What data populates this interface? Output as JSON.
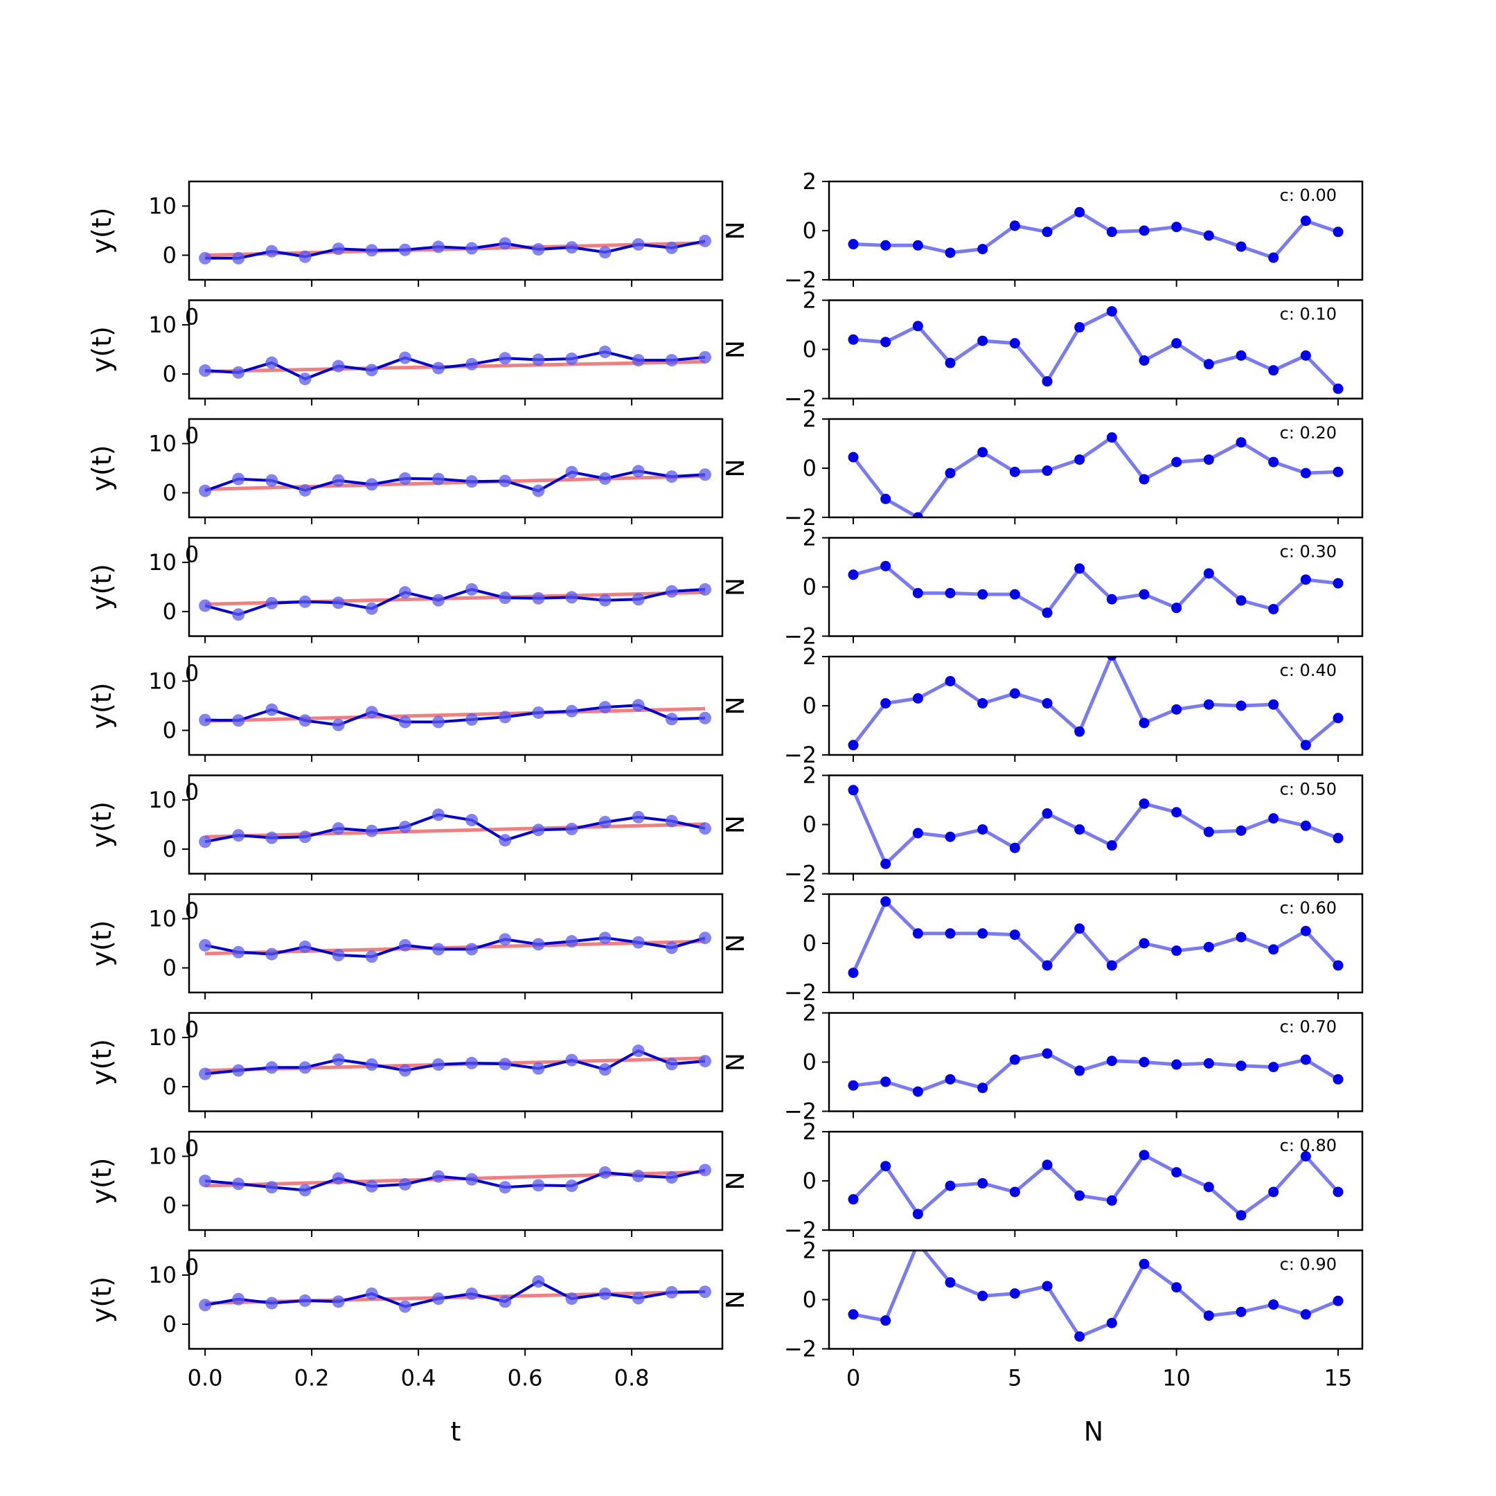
{
  "chart_data": {
    "type": "line",
    "panels": {
      "left": {
        "x": [
          0.0,
          0.0625,
          0.125,
          0.1875,
          0.25,
          0.3125,
          0.375,
          0.4375,
          0.5,
          0.5625,
          0.625,
          0.6875,
          0.75,
          0.8125,
          0.875,
          0.9375
        ],
        "xticks": [
          "0.0",
          "0.2",
          "0.4",
          "0.6",
          "0.8"
        ],
        "xtick_values": [
          0.0,
          0.2,
          0.4,
          0.6,
          0.8
        ],
        "xlim": [
          -0.03,
          0.97
        ],
        "ylim": [
          -5,
          15
        ],
        "yticks": [
          "0",
          "10"
        ],
        "ytick_values": [
          0,
          10
        ],
        "xlabel": "t",
        "ylabel": "y(t)",
        "colors": {
          "data": "#0000cc",
          "trend": "#f08080"
        }
      },
      "right": {
        "x": [
          0,
          1,
          2,
          3,
          4,
          5,
          6,
          7,
          8,
          9,
          10,
          11,
          12,
          13,
          14,
          15
        ],
        "xticks": [
          "0",
          "5",
          "10",
          "15"
        ],
        "xtick_values": [
          0,
          5,
          10,
          15
        ],
        "xlim": [
          -0.75,
          15.75
        ],
        "ylim": [
          -2,
          2
        ],
        "yticks": [
          "−2",
          "0",
          "2"
        ],
        "ytick_values": [
          -2,
          0,
          2
        ],
        "xlabel": "N",
        "right_ylabel": "N",
        "colors": {
          "line": "#7b7bf0",
          "marker": "#0000ee"
        }
      }
    },
    "rows": [
      {
        "label": "c: 0.00",
        "y": [
          -0.6,
          -0.6,
          0.8,
          -0.3,
          1.3,
          1.0,
          1.1,
          1.7,
          1.4,
          2.4,
          1.2,
          1.6,
          0.6,
          2.2,
          1.5,
          2.9
        ],
        "trend": [
          0.0,
          2.5
        ],
        "noise": [
          -0.55,
          -0.6,
          -0.6,
          -0.9,
          -0.75,
          0.2,
          -0.05,
          0.75,
          -0.05,
          0.0,
          0.15,
          -0.2,
          -0.65,
          -1.1,
          0.4,
          -0.05
        ]
      },
      {
        "label": "c: 0.10",
        "y": [
          0.7,
          0.3,
          2.3,
          -1.0,
          1.6,
          0.8,
          3.3,
          1.2,
          2.0,
          3.2,
          2.9,
          3.1,
          4.5,
          2.8,
          2.8,
          3.4
        ],
        "trend": [
          0.5,
          2.5
        ],
        "noise": [
          0.4,
          0.3,
          0.95,
          -0.55,
          0.35,
          0.25,
          -1.3,
          0.9,
          1.55,
          -0.45,
          0.25,
          -0.6,
          -0.25,
          -0.85,
          -0.25,
          -1.6
        ]
      },
      {
        "label": "c: 0.20",
        "y": [
          0.4,
          2.8,
          2.5,
          0.5,
          2.5,
          1.7,
          2.9,
          2.8,
          2.3,
          2.4,
          0.4,
          4.2,
          2.9,
          4.4,
          3.3,
          3.7
        ],
        "trend": [
          0.7,
          3.4
        ],
        "noise": [
          0.45,
          -1.25,
          -2.0,
          -0.2,
          0.65,
          -0.15,
          -0.1,
          0.35,
          1.25,
          -0.45,
          0.25,
          0.35,
          1.05,
          0.25,
          -0.2,
          -0.15
        ]
      },
      {
        "label": "c: 0.30",
        "y": [
          1.2,
          -0.6,
          1.7,
          2.0,
          1.8,
          0.6,
          3.9,
          2.3,
          4.5,
          2.8,
          2.7,
          2.9,
          2.3,
          2.5,
          4.1,
          4.5
        ],
        "trend": [
          1.5,
          3.9
        ],
        "noise": [
          0.5,
          0.85,
          -0.25,
          -0.25,
          -0.3,
          -0.3,
          -1.05,
          0.75,
          -0.5,
          -0.3,
          -0.85,
          0.55,
          -0.55,
          -0.9,
          0.3,
          0.15
        ]
      },
      {
        "label": "c: 0.40",
        "y": [
          2.1,
          2.0,
          4.2,
          2.0,
          1.1,
          3.7,
          1.7,
          1.7,
          2.2,
          2.7,
          3.6,
          3.9,
          4.7,
          5.1,
          2.3,
          2.5
        ],
        "trend": [
          1.9,
          4.4
        ],
        "noise": [
          -1.6,
          0.1,
          0.3,
          1.0,
          0.1,
          0.5,
          0.1,
          -1.05,
          2.05,
          -0.7,
          -0.15,
          0.05,
          0.0,
          0.05,
          -1.6,
          -0.5
        ]
      },
      {
        "label": "c: 0.50",
        "y": [
          1.5,
          2.8,
          2.3,
          2.5,
          4.2,
          3.7,
          4.5,
          7.0,
          5.9,
          1.8,
          3.9,
          4.1,
          5.5,
          6.5,
          5.7,
          4.2
        ],
        "trend": [
          2.5,
          5.1
        ],
        "noise": [
          1.4,
          -1.6,
          -0.35,
          -0.5,
          -0.2,
          -0.95,
          0.45,
          -0.2,
          -0.85,
          0.85,
          0.5,
          -0.3,
          -0.25,
          0.25,
          -0.05,
          -0.55
        ]
      },
      {
        "label": "c: 0.60",
        "y": [
          4.6,
          3.2,
          2.8,
          4.3,
          2.6,
          2.3,
          4.6,
          3.8,
          3.8,
          5.8,
          4.8,
          5.4,
          6.1,
          5.2,
          4.1,
          6.1
        ],
        "trend": [
          2.9,
          5.4
        ],
        "noise": [
          -1.2,
          1.7,
          0.4,
          0.4,
          0.4,
          0.35,
          -0.9,
          0.6,
          -0.9,
          0.0,
          -0.3,
          -0.15,
          0.25,
          -0.25,
          0.5,
          -0.9
        ]
      },
      {
        "label": "c: 0.70",
        "y": [
          2.6,
          3.3,
          3.9,
          3.9,
          5.5,
          4.5,
          3.3,
          4.5,
          4.8,
          4.6,
          3.7,
          5.4,
          3.5,
          7.3,
          4.6,
          5.2
        ],
        "trend": [
          3.3,
          5.8
        ],
        "noise": [
          -0.95,
          -0.8,
          -1.2,
          -0.7,
          -1.05,
          0.1,
          0.35,
          -0.35,
          0.05,
          0.0,
          -0.1,
          -0.05,
          -0.15,
          -0.2,
          0.1,
          -0.7
        ]
      },
      {
        "label": "c: 0.80",
        "y": [
          5.0,
          4.4,
          3.7,
          3.1,
          5.5,
          3.9,
          4.3,
          5.9,
          5.3,
          3.7,
          4.1,
          4.0,
          6.7,
          6.0,
          5.7,
          7.2
        ],
        "trend": [
          4.0,
          6.8
        ],
        "noise": [
          -0.75,
          0.6,
          -1.35,
          -0.2,
          -0.1,
          -0.45,
          0.65,
          -0.6,
          -0.8,
          1.05,
          0.35,
          -0.25,
          -1.4,
          -0.45,
          1.0,
          -0.45
        ]
      },
      {
        "label": "c: 0.90",
        "y": [
          3.9,
          5.1,
          4.3,
          4.8,
          4.6,
          6.2,
          3.6,
          5.2,
          6.2,
          4.6,
          8.7,
          5.2,
          6.2,
          5.3,
          6.5,
          6.6
        ],
        "trend": [
          4.3,
          6.6
        ],
        "noise": [
          -0.6,
          -0.85,
          2.3,
          0.7,
          0.15,
          0.25,
          0.55,
          -1.5,
          -0.95,
          1.45,
          0.5,
          -0.65,
          -0.5,
          -0.2,
          -0.6,
          -0.05
        ]
      }
    ]
  }
}
